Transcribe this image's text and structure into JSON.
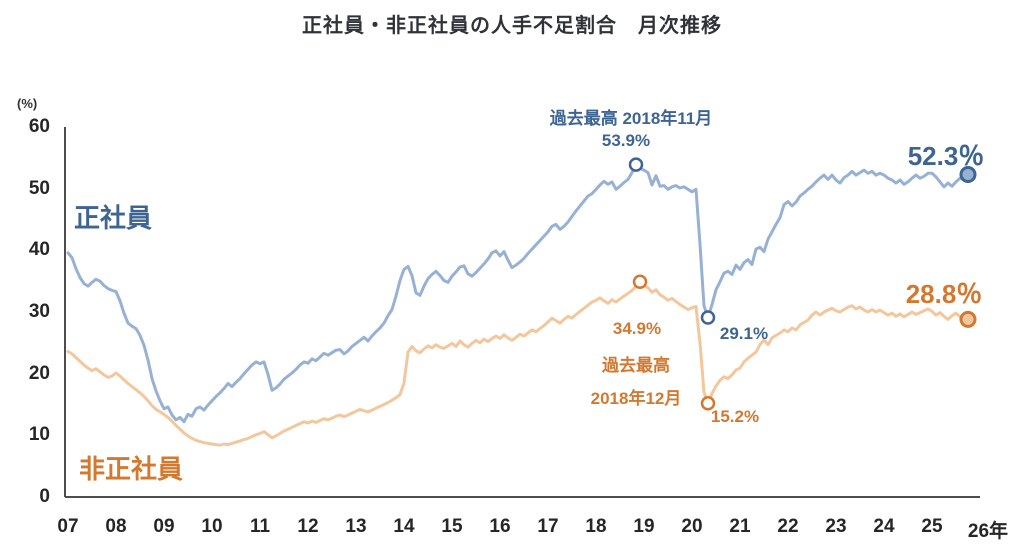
{
  "title": "正社員・非正社員の人手不足割合　月次推移",
  "y_axis": {
    "unit_label": "(%)",
    "ticks": [
      60,
      50,
      40,
      30,
      20,
      10,
      0
    ]
  },
  "x_axis": {
    "labels": [
      "07",
      "08",
      "09",
      "10",
      "11",
      "12",
      "13",
      "14",
      "15",
      "16",
      "17",
      "18",
      "19",
      "20",
      "21",
      "22",
      "23",
      "24",
      "25",
      "26年"
    ]
  },
  "series_labels": {
    "regular": "正社員",
    "non_regular": "非正社員"
  },
  "annotations": {
    "peak_regular_caption": "過去最高 2018年11月",
    "peak_regular_value": "53.9%",
    "latest_regular_value": "52.3％",
    "covid_low_regular_value": "29.1%",
    "peak_non_regular_value": "34.9%",
    "peak_non_regular_caption_line1": "過去最高",
    "peak_non_regular_caption_line2": "2018年12月",
    "covid_low_non_regular_value": "15.2%",
    "latest_non_regular_value": "28.8％"
  },
  "colors": {
    "regular_line": "#97b1d4",
    "regular_dark": "#3e6493",
    "non_regular_line": "#f3c79c",
    "non_regular_dark": "#d3782f",
    "axis": "#4d4d4d",
    "text": "#2f3338"
  },
  "chart_data": {
    "type": "line",
    "title": "正社員・非正社員の人手不足割合　月次推移",
    "ylabel": "(%)",
    "ylim": [
      0,
      60
    ],
    "x_start_year": 2007,
    "x_end_label": "2025-10",
    "points_per_year": 12,
    "grid": false,
    "series": [
      {
        "name": "正社員",
        "values": [
          39.6,
          38.8,
          37.0,
          35.6,
          34.6,
          34.2,
          34.8,
          35.3,
          35.0,
          34.3,
          33.8,
          33.5,
          33.3,
          31.8,
          29.8,
          28.2,
          27.7,
          27.3,
          26.2,
          24.6,
          22.2,
          19.2,
          17.2,
          15.6,
          14.3,
          14.6,
          13.3,
          12.5,
          12.9,
          12.2,
          13.4,
          13.1,
          14.3,
          14.6,
          14.1,
          14.9,
          15.6,
          16.3,
          16.9,
          17.6,
          18.4,
          17.9,
          18.6,
          19.2,
          20.0,
          20.7,
          21.4,
          21.9,
          21.6,
          21.9,
          19.9,
          17.3,
          17.7,
          18.3,
          19.1,
          19.6,
          20.1,
          20.7,
          21.4,
          21.9,
          21.7,
          22.4,
          22.1,
          22.7,
          23.3,
          23.0,
          23.4,
          23.8,
          23.9,
          23.2,
          23.7,
          24.4,
          24.9,
          25.4,
          25.9,
          25.3,
          26.1,
          26.8,
          27.4,
          28.2,
          29.4,
          30.4,
          32.6,
          35.1,
          36.9,
          37.4,
          35.9,
          33.1,
          32.7,
          34.2,
          35.4,
          36.1,
          36.6,
          35.9,
          35.1,
          34.8,
          35.8,
          36.5,
          37.3,
          37.5,
          36.2,
          35.8,
          36.4,
          37.1,
          37.8,
          38.6,
          39.6,
          39.9,
          39.1,
          39.8,
          38.4,
          37.2,
          37.6,
          38.1,
          38.7,
          39.5,
          40.2,
          40.9,
          41.6,
          42.3,
          43.0,
          43.9,
          44.2,
          43.4,
          43.9,
          44.6,
          45.5,
          46.4,
          47.2,
          48.0,
          48.8,
          49.2,
          49.9,
          50.6,
          51.2,
          50.7,
          51.1,
          49.9,
          50.4,
          51.0,
          51.5,
          52.6,
          53.9,
          53.3,
          53.0,
          52.6,
          50.6,
          52.1,
          50.4,
          50.5,
          49.9,
          50.3,
          50.5,
          50.1,
          50.3,
          49.9,
          49.5,
          49.9,
          41.0,
          31.0,
          29.1,
          31.2,
          33.6,
          34.9,
          36.3,
          36.6,
          36.1,
          37.6,
          36.9,
          38.0,
          38.5,
          37.7,
          40.2,
          40.5,
          39.8,
          41.8,
          43.0,
          44.2,
          45.3,
          47.4,
          47.9,
          47.2,
          47.8,
          48.8,
          49.3,
          49.9,
          50.4,
          51.1,
          51.7,
          52.2,
          51.5,
          52.2,
          51.4,
          50.9,
          51.8,
          52.2,
          52.8,
          52.2,
          52.6,
          53.0,
          52.5,
          52.8,
          52.2,
          52.5,
          52.2,
          51.7,
          51.4,
          50.9,
          51.4,
          50.7,
          51.1,
          51.7,
          52.2,
          51.7,
          52.0,
          52.5,
          52.5,
          51.9,
          51.1,
          50.3,
          50.9,
          50.4,
          51.1,
          51.7,
          51.4,
          52.3
        ]
      },
      {
        "name": "非正社員",
        "values": [
          23.6,
          23.2,
          22.6,
          22.0,
          21.4,
          20.9,
          20.5,
          20.8,
          20.3,
          19.8,
          19.4,
          19.6,
          20.1,
          19.6,
          19.0,
          18.4,
          17.9,
          17.4,
          16.9,
          16.3,
          15.6,
          14.8,
          14.2,
          13.8,
          13.4,
          12.9,
          12.3,
          11.6,
          11.0,
          10.4,
          9.9,
          9.5,
          9.2,
          9.0,
          8.8,
          8.7,
          8.6,
          8.5,
          8.4,
          8.6,
          8.5,
          8.7,
          8.9,
          9.1,
          9.3,
          9.5,
          9.8,
          10.1,
          10.3,
          10.6,
          10.1,
          9.6,
          9.9,
          10.3,
          10.7,
          11.0,
          11.3,
          11.6,
          11.9,
          12.2,
          12.0,
          12.3,
          12.1,
          12.4,
          12.7,
          12.5,
          12.8,
          13.1,
          13.3,
          13.0,
          13.3,
          13.6,
          13.9,
          14.2,
          14.0,
          13.8,
          14.1,
          14.4,
          14.7,
          15.0,
          15.3,
          15.7,
          16.1,
          16.6,
          18.5,
          23.5,
          24.4,
          23.7,
          23.4,
          24.0,
          24.5,
          24.2,
          24.7,
          24.3,
          24.1,
          24.5,
          24.9,
          24.4,
          25.3,
          24.7,
          24.3,
          24.9,
          25.4,
          25.0,
          25.6,
          25.2,
          25.7,
          26.1,
          25.7,
          26.3,
          25.8,
          25.4,
          25.9,
          26.4,
          26.1,
          26.6,
          27.1,
          26.8,
          27.3,
          27.8,
          28.4,
          29.0,
          28.6,
          28.2,
          28.8,
          29.3,
          29.0,
          29.6,
          30.1,
          30.6,
          31.1,
          31.6,
          31.9,
          32.3,
          31.8,
          31.4,
          32.0,
          31.6,
          32.1,
          32.6,
          33.0,
          33.5,
          34.1,
          34.9,
          34.4,
          33.9,
          33.2,
          33.6,
          32.8,
          32.4,
          31.9,
          32.2,
          31.7,
          31.2,
          30.8,
          30.4,
          30.7,
          30.9,
          25.0,
          17.0,
          15.2,
          16.8,
          18.0,
          18.9,
          19.5,
          19.2,
          19.8,
          20.6,
          20.9,
          21.9,
          22.5,
          23.0,
          23.5,
          24.7,
          25.5,
          24.7,
          25.8,
          26.2,
          26.6,
          27.1,
          26.8,
          27.4,
          27.1,
          27.9,
          28.3,
          28.7,
          29.5,
          30.0,
          29.5,
          30.0,
          30.3,
          30.6,
          30.2,
          30.0,
          30.4,
          30.8,
          31.0,
          30.5,
          30.8,
          30.3,
          30.0,
          30.4,
          30.0,
          30.3,
          29.9,
          29.5,
          29.8,
          29.3,
          29.7,
          29.2,
          29.6,
          30.0,
          29.6,
          29.9,
          30.2,
          30.5,
          30.1,
          29.5,
          29.9,
          29.3,
          28.8,
          29.4,
          29.8,
          29.2,
          28.6,
          28.8
        ]
      }
    ],
    "markers": [
      {
        "series": 0,
        "index": 142,
        "label": "53.9%",
        "end": false
      },
      {
        "series": 0,
        "index": 160,
        "label": "29.1%",
        "end": false
      },
      {
        "series": 0,
        "index": 225,
        "label": "52.3%",
        "end": true
      },
      {
        "series": 1,
        "index": 143,
        "label": "34.9%",
        "end": false
      },
      {
        "series": 1,
        "index": 160,
        "label": "15.2%",
        "end": false
      },
      {
        "series": 1,
        "index": 225,
        "label": "28.8%",
        "end": true
      }
    ]
  }
}
